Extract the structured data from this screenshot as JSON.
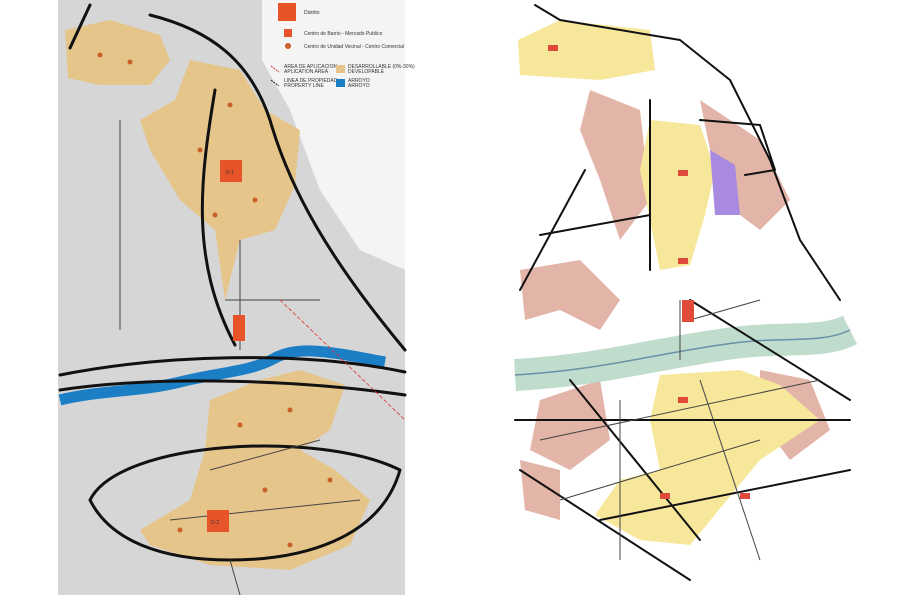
{
  "legend": {
    "points": [
      "Distrito",
      "Centro de Barrio - Mercado Publico",
      "Centro de Unidad Vecinal - Centro Comercial"
    ],
    "lines": [
      [
        "AREA DE APLICACION",
        "APLICATION AREA"
      ],
      [
        "LINEA DE PROPIEDAD",
        "PROPERTY LINE"
      ]
    ],
    "areas": [
      [
        "DESARROLLABLE (0%-30%)",
        "DEVELOPABLE"
      ],
      [
        "ARROYO",
        "ARROYO"
      ]
    ]
  },
  "map_labels": [
    "D-1",
    "D-2"
  ]
}
